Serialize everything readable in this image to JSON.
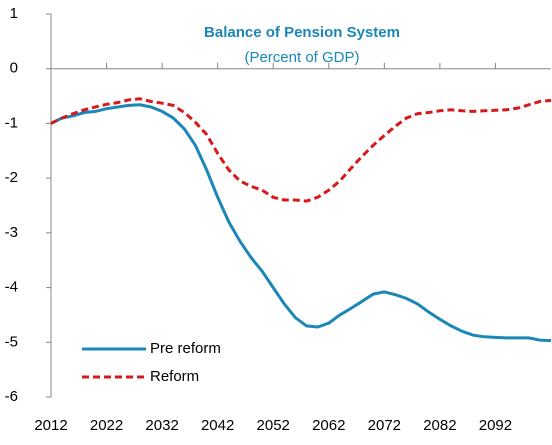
{
  "chart_data": {
    "type": "line",
    "title": "Balance of Pension System",
    "subtitle": "(Percent of GDP)",
    "x": [
      2012,
      2014,
      2016,
      2018,
      2020,
      2022,
      2024,
      2026,
      2028,
      2030,
      2032,
      2034,
      2036,
      2038,
      2040,
      2042,
      2044,
      2046,
      2048,
      2050,
      2052,
      2054,
      2056,
      2058,
      2060,
      2062,
      2064,
      2066,
      2068,
      2070,
      2072,
      2074,
      2076,
      2078,
      2080,
      2082,
      2084,
      2086,
      2088,
      2090,
      2092,
      2094,
      2096,
      2098,
      2100,
      2102
    ],
    "series": [
      {
        "name": "Pre reform",
        "color": "#1b87b8",
        "dash": false,
        "values": [
          -1.0,
          -0.9,
          -0.86,
          -0.8,
          -0.78,
          -0.73,
          -0.7,
          -0.67,
          -0.66,
          -0.7,
          -0.78,
          -0.9,
          -1.1,
          -1.4,
          -1.85,
          -2.35,
          -2.8,
          -3.15,
          -3.45,
          -3.7,
          -4.0,
          -4.3,
          -4.55,
          -4.7,
          -4.72,
          -4.65,
          -4.5,
          -4.38,
          -4.25,
          -4.12,
          -4.08,
          -4.13,
          -4.2,
          -4.3,
          -4.45,
          -4.58,
          -4.7,
          -4.8,
          -4.87,
          -4.9,
          -4.91,
          -4.92,
          -4.92,
          -4.92,
          -4.96,
          -4.97
        ]
      },
      {
        "name": "Reform",
        "color": "#d7191c",
        "dash": true,
        "values": [
          -1.0,
          -0.9,
          -0.82,
          -0.75,
          -0.7,
          -0.65,
          -0.62,
          -0.57,
          -0.55,
          -0.6,
          -0.63,
          -0.67,
          -0.8,
          -0.98,
          -1.2,
          -1.55,
          -1.85,
          -2.05,
          -2.15,
          -2.22,
          -2.35,
          -2.4,
          -2.4,
          -2.42,
          -2.35,
          -2.22,
          -2.05,
          -1.82,
          -1.6,
          -1.4,
          -1.22,
          -1.05,
          -0.9,
          -0.82,
          -0.8,
          -0.77,
          -0.75,
          -0.77,
          -0.78,
          -0.77,
          -0.76,
          -0.75,
          -0.72,
          -0.66,
          -0.6,
          -0.58
        ]
      }
    ],
    "xlim": [
      2012,
      2102
    ],
    "xticks": [
      2012,
      2022,
      2032,
      2042,
      2052,
      2062,
      2072,
      2082,
      2092
    ],
    "ylim": [
      -6,
      1
    ],
    "yticks": [
      -6,
      -5,
      -4,
      -3,
      -2,
      -1,
      0,
      1
    ],
    "legend": "lower left"
  }
}
